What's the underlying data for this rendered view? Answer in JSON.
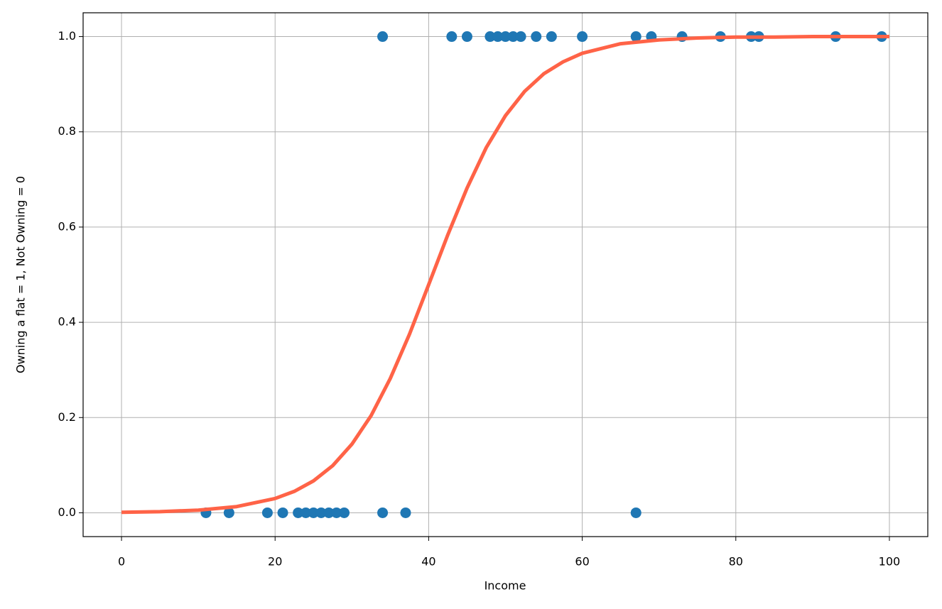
{
  "chart_data": {
    "type": "scatter",
    "xlabel": "Income",
    "ylabel": "Owning a flat = 1, Not Owning = 0",
    "xlim": [
      -5,
      105
    ],
    "ylim": [
      -0.05,
      1.05
    ],
    "xticks": [
      0,
      20,
      40,
      60,
      80,
      100
    ],
    "yticks": [
      {
        "value": 0,
        "label": "0.0"
      },
      0.2,
      0.4,
      0.6,
      0.8,
      {
        "value": 1,
        "label": "1.0"
      }
    ],
    "grid": true,
    "series": [
      {
        "type": "scatter",
        "color": "#1f77b4",
        "x": [
          11,
          14,
          19,
          21,
          23,
          24,
          25,
          26,
          27,
          28,
          29,
          34,
          37,
          67,
          34,
          43,
          45,
          48,
          49,
          50,
          51,
          52,
          54,
          56,
          60,
          67,
          69,
          73,
          78,
          82,
          83,
          93,
          99
        ],
        "values": [
          0,
          0,
          0,
          0,
          0,
          0,
          0,
          0,
          0,
          0,
          0,
          0,
          0,
          0,
          1,
          1,
          1,
          1,
          1,
          1,
          1,
          1,
          1,
          1,
          1,
          1,
          1,
          1,
          1,
          1,
          1,
          1,
          1
        ]
      },
      {
        "type": "line",
        "color": "#ff6347",
        "x": [
          0,
          5,
          10,
          15,
          20,
          22.5,
          25,
          27.5,
          30,
          32.5,
          35,
          37.5,
          40,
          42.5,
          45,
          47.5,
          50,
          52.5,
          55,
          57.5,
          60,
          65,
          70,
          75,
          80,
          85,
          90,
          95,
          100
        ],
        "values": [
          0.001,
          0.0024,
          0.0056,
          0.013,
          0.03,
          0.045,
          0.067,
          0.099,
          0.144,
          0.204,
          0.282,
          0.375,
          0.479,
          0.584,
          0.682,
          0.767,
          0.834,
          0.885,
          0.922,
          0.947,
          0.965,
          0.985,
          0.993,
          0.997,
          0.999,
          0.999,
          1.0,
          1.0,
          1.0
        ]
      }
    ]
  }
}
